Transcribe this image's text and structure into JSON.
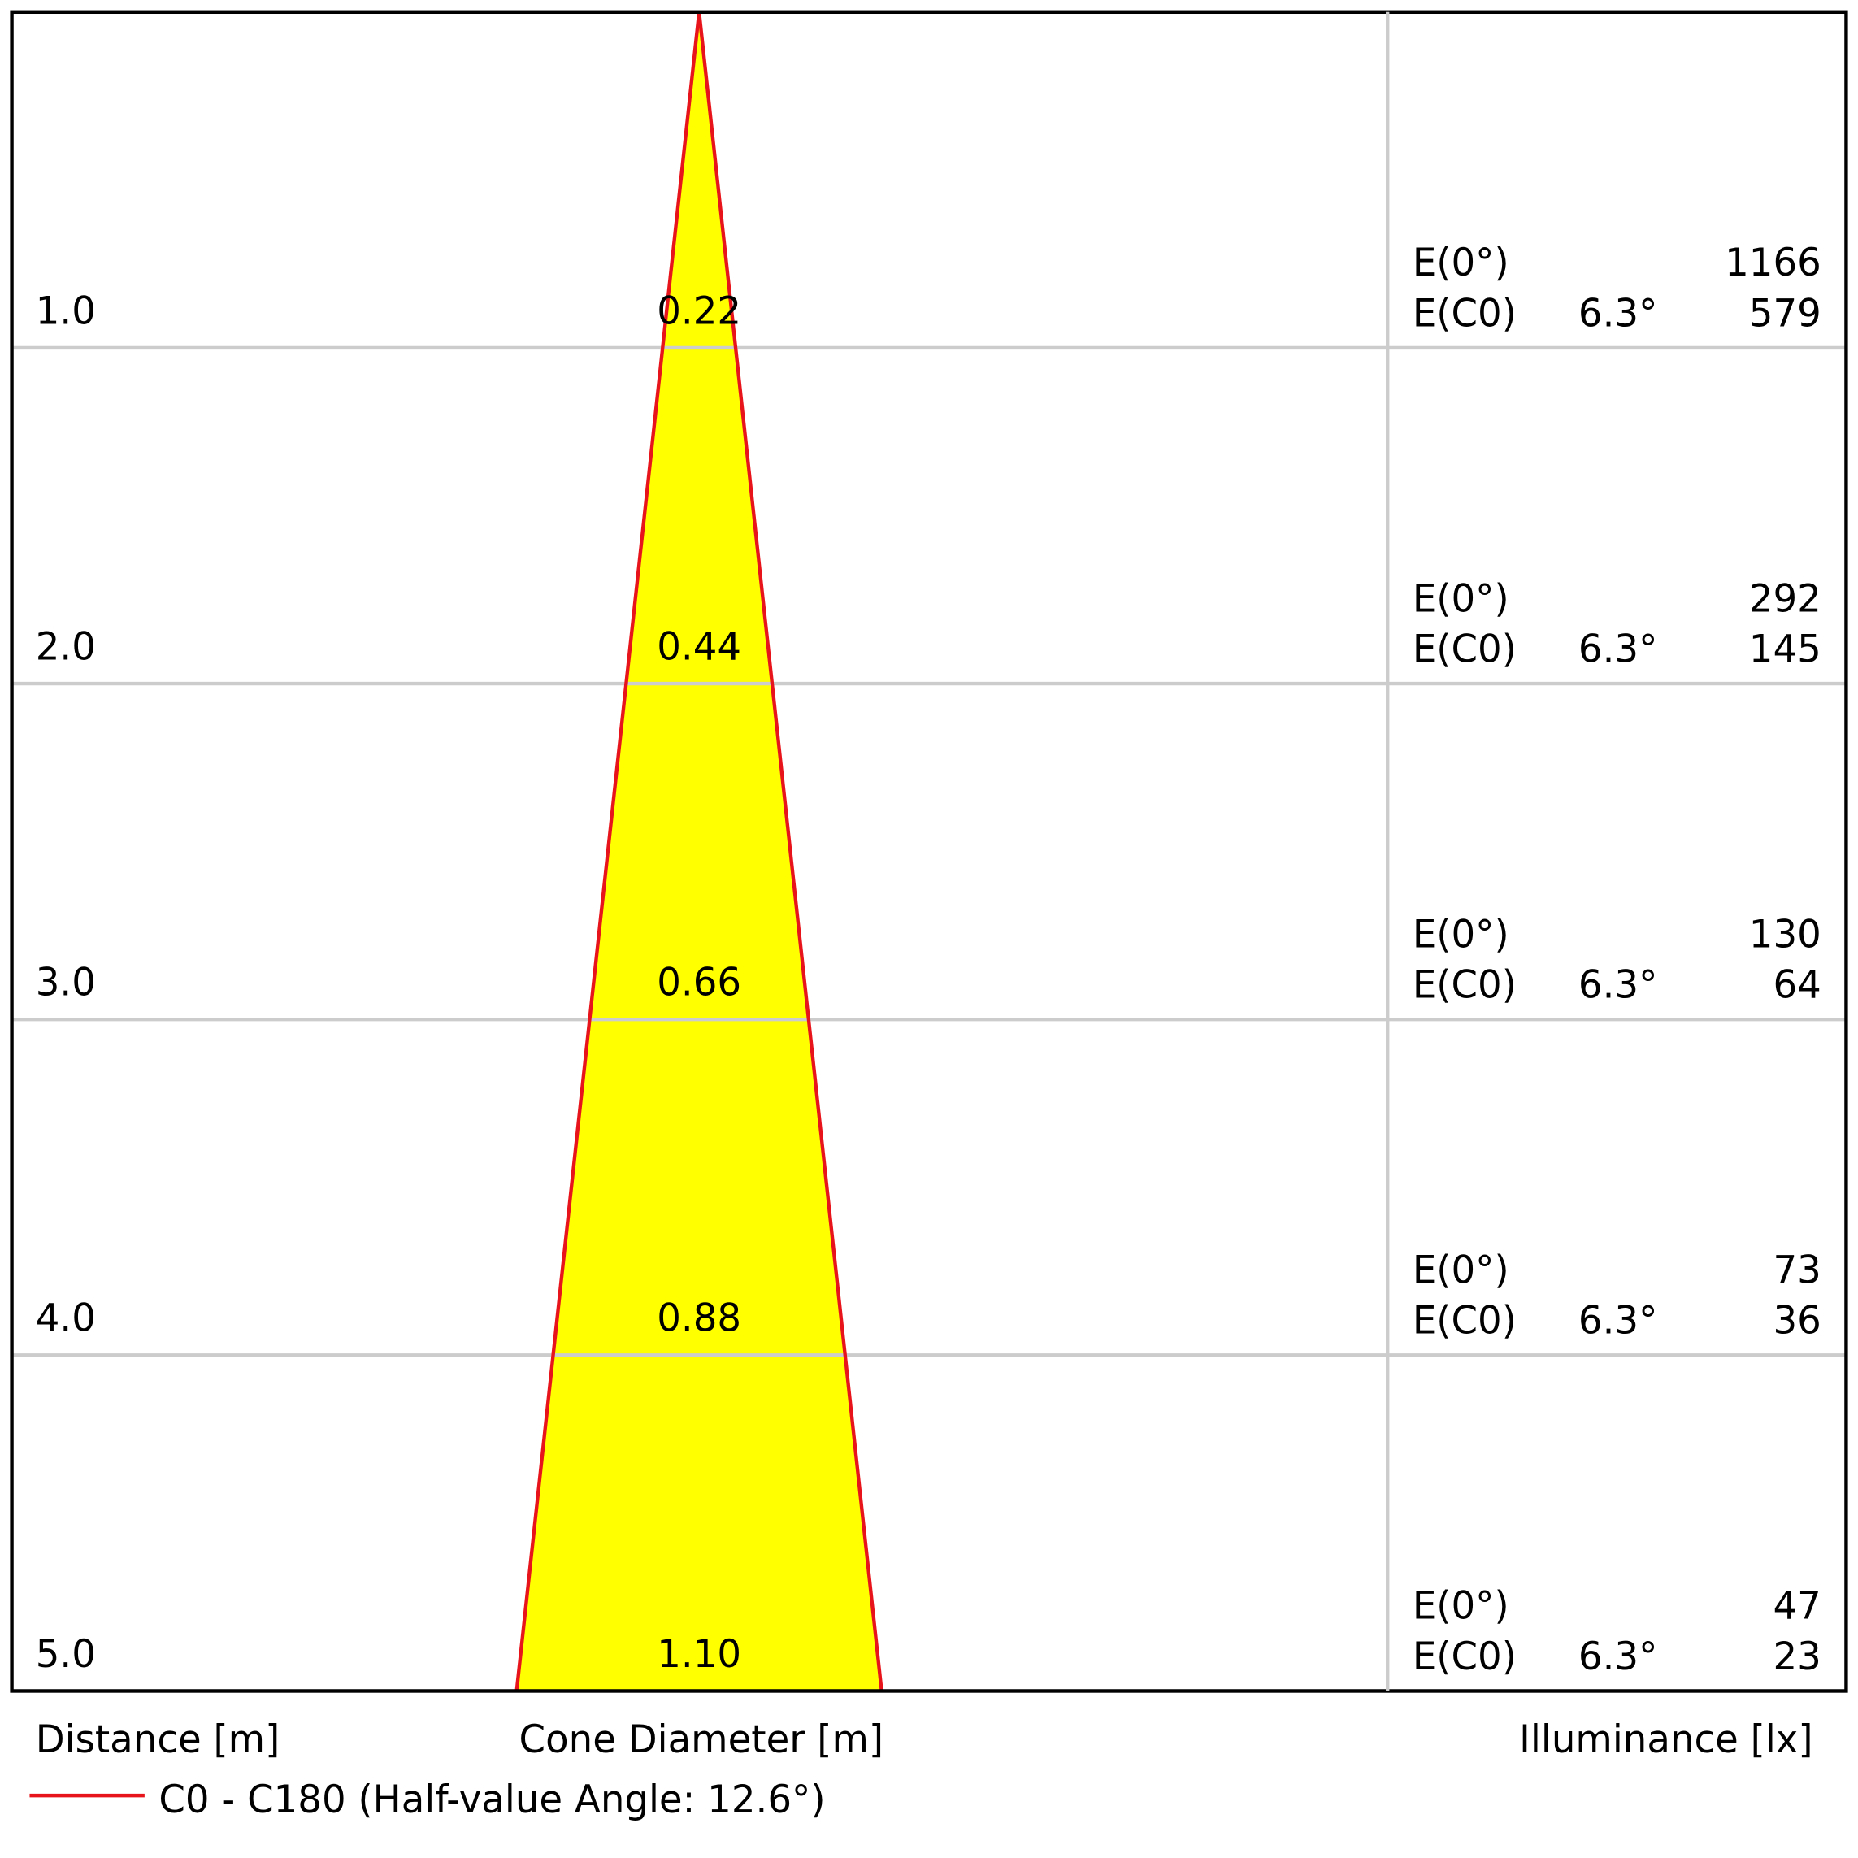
{
  "chart_data": {
    "type": "cone",
    "ylabel": "Distance [m]",
    "xlabel": "Cone Diameter [m]",
    "illuminance_label": "Illuminance [lx]",
    "ylim": [
      0,
      5
    ],
    "yticks": [
      {
        "value": 1,
        "label": "1.0"
      },
      {
        "value": 2,
        "label": "2.0"
      },
      {
        "value": 3,
        "label": "3.0"
      },
      {
        "value": 4,
        "label": "4.0"
      },
      {
        "value": 5,
        "label": "5.0"
      }
    ],
    "values": [
      0.22,
      0.44,
      0.66,
      0.88,
      1.1
    ],
    "value_labels": [
      "0.22",
      "0.44",
      "0.66",
      "0.88",
      "1.10"
    ],
    "e0_label": "E(0°)",
    "ec0_label": "E(C0)",
    "e0_values": [
      1166,
      292,
      130,
      73,
      47
    ],
    "ec0_values": [
      579,
      145,
      64,
      36,
      23
    ],
    "ec0_angles": [
      "6.3°",
      "6.3°",
      "6.3°",
      "6.3°",
      "6.3°"
    ],
    "series_name": "C0 - C180 (Half-value Angle: 12.6°)",
    "line_color": "#e8141b",
    "fill_color": "#ffff00",
    "grid": true
  }
}
